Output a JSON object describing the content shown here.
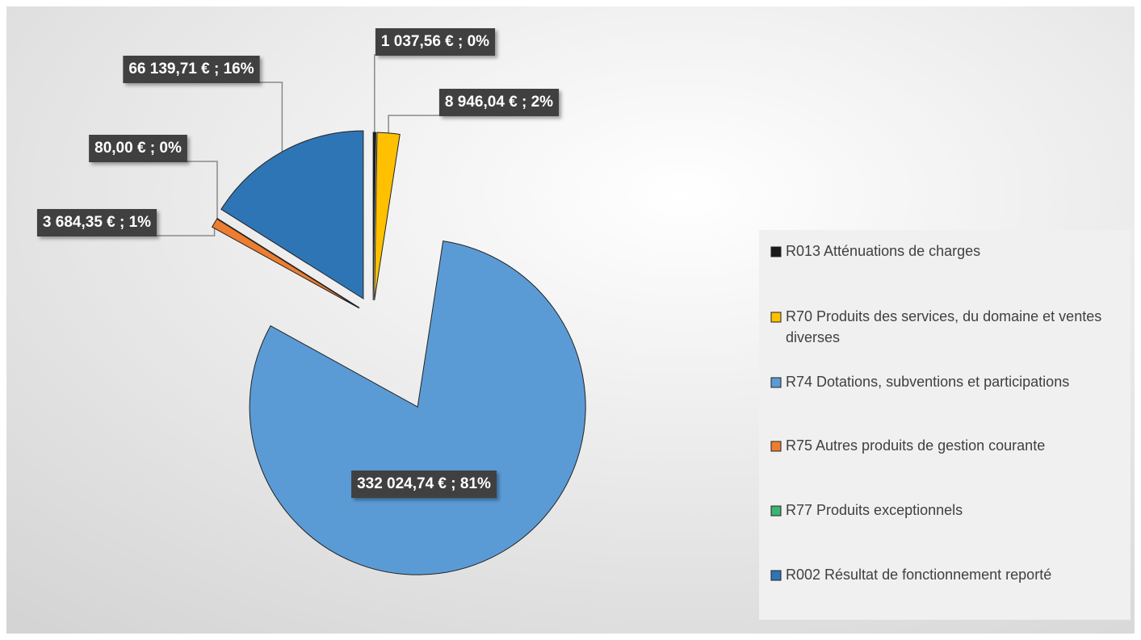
{
  "chart_data": {
    "type": "pie",
    "categories": [
      "R013 Atténuations de charges",
      "R70 Produits des services, du domaine et ventes diverses",
      "R74 Dotations, subventions et participations",
      "R75 Autres produits de gestion courante",
      "R77 Produits exceptionnels",
      "R002 Résultat de fonctionnement reporté"
    ],
    "values": [
      1037.56,
      8946.04,
      332024.74,
      3684.35,
      80.0,
      66139.71
    ],
    "value_labels": [
      "1 037,56 € ; 0%",
      "8 946,04 € ; 2%",
      "332 024,74 € ; 81%",
      "3 684,35 € ; 1%",
      "80,00 € ; 0%",
      "66 139,71 € ; 16%"
    ],
    "colors": [
      "#1a1a1a",
      "#ffc000",
      "#5b9bd5",
      "#ed7d31",
      "#3cb371",
      "#2e75b6"
    ],
    "legend": "right"
  }
}
